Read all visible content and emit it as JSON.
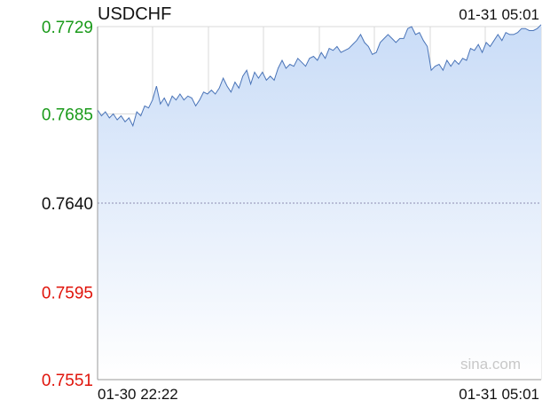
{
  "header": {
    "symbol": "USDCHF",
    "timestamp": "01-31 05:01"
  },
  "watermark": "sina.com",
  "colors": {
    "line": "#4a74b8",
    "fill_top": "#c9dcf7",
    "fill_bottom": "#ffffff",
    "up": "#1a9a1a",
    "down": "#e0140b",
    "neutral": "#111111",
    "grid": "#d8d8d8",
    "axis": "#9a9a9a",
    "ref_line": "#8c8cb0",
    "watermark": "#c8c8c8"
  },
  "chart_data": {
    "type": "area",
    "title": "USDCHF",
    "reference_value": 0.764,
    "ylim": [
      0.7551,
      0.7729
    ],
    "y_ticks": [
      {
        "label": "0.7729",
        "value": 0.7729,
        "color": "up"
      },
      {
        "label": "0.7685",
        "value": 0.7685,
        "color": "up"
      },
      {
        "label": "0.7640",
        "value": 0.764,
        "color": "neutral"
      },
      {
        "label": "0.7595",
        "value": 0.7595,
        "color": "down"
      },
      {
        "label": "0.7551",
        "value": 0.7551,
        "color": "down"
      }
    ],
    "x_ticks": [
      "01-30 22:22",
      "01-31 05:01"
    ],
    "x_range": [
      "01-30 22:22",
      "01-31 05:01"
    ],
    "grid": true,
    "series": [
      {
        "values": [
          0.7687,
          0.7684,
          0.7686,
          0.7683,
          0.7685,
          0.7682,
          0.7684,
          0.7681,
          0.7683,
          0.7679,
          0.7686,
          0.7684,
          0.7689,
          0.7688,
          0.7692,
          0.7699,
          0.769,
          0.7693,
          0.7689,
          0.7694,
          0.7692,
          0.7695,
          0.7692,
          0.7694,
          0.7693,
          0.7689,
          0.7692,
          0.7696,
          0.7695,
          0.7697,
          0.7695,
          0.7698,
          0.7703,
          0.7699,
          0.7696,
          0.7701,
          0.7698,
          0.7704,
          0.7707,
          0.77,
          0.7706,
          0.7703,
          0.7706,
          0.7702,
          0.7704,
          0.7702,
          0.7708,
          0.7712,
          0.7708,
          0.771,
          0.7709,
          0.7713,
          0.7711,
          0.7709,
          0.7713,
          0.7714,
          0.7712,
          0.7716,
          0.7713,
          0.7718,
          0.7717,
          0.7719,
          0.7716,
          0.7717,
          0.7718,
          0.772,
          0.7722,
          0.7725,
          0.7721,
          0.7719,
          0.7715,
          0.7716,
          0.7721,
          0.7723,
          0.7725,
          0.7723,
          0.7721,
          0.7723,
          0.7723,
          0.7728,
          0.7729,
          0.7725,
          0.7726,
          0.7722,
          0.7719,
          0.7707,
          0.7709,
          0.771,
          0.7707,
          0.7712,
          0.7709,
          0.7712,
          0.771,
          0.7713,
          0.7712,
          0.7718,
          0.7717,
          0.772,
          0.7716,
          0.7721,
          0.7719,
          0.7722,
          0.7725,
          0.7722,
          0.7726,
          0.7725,
          0.7725,
          0.7726,
          0.7728,
          0.7728,
          0.7727,
          0.7727,
          0.7728,
          0.773
        ]
      }
    ]
  }
}
